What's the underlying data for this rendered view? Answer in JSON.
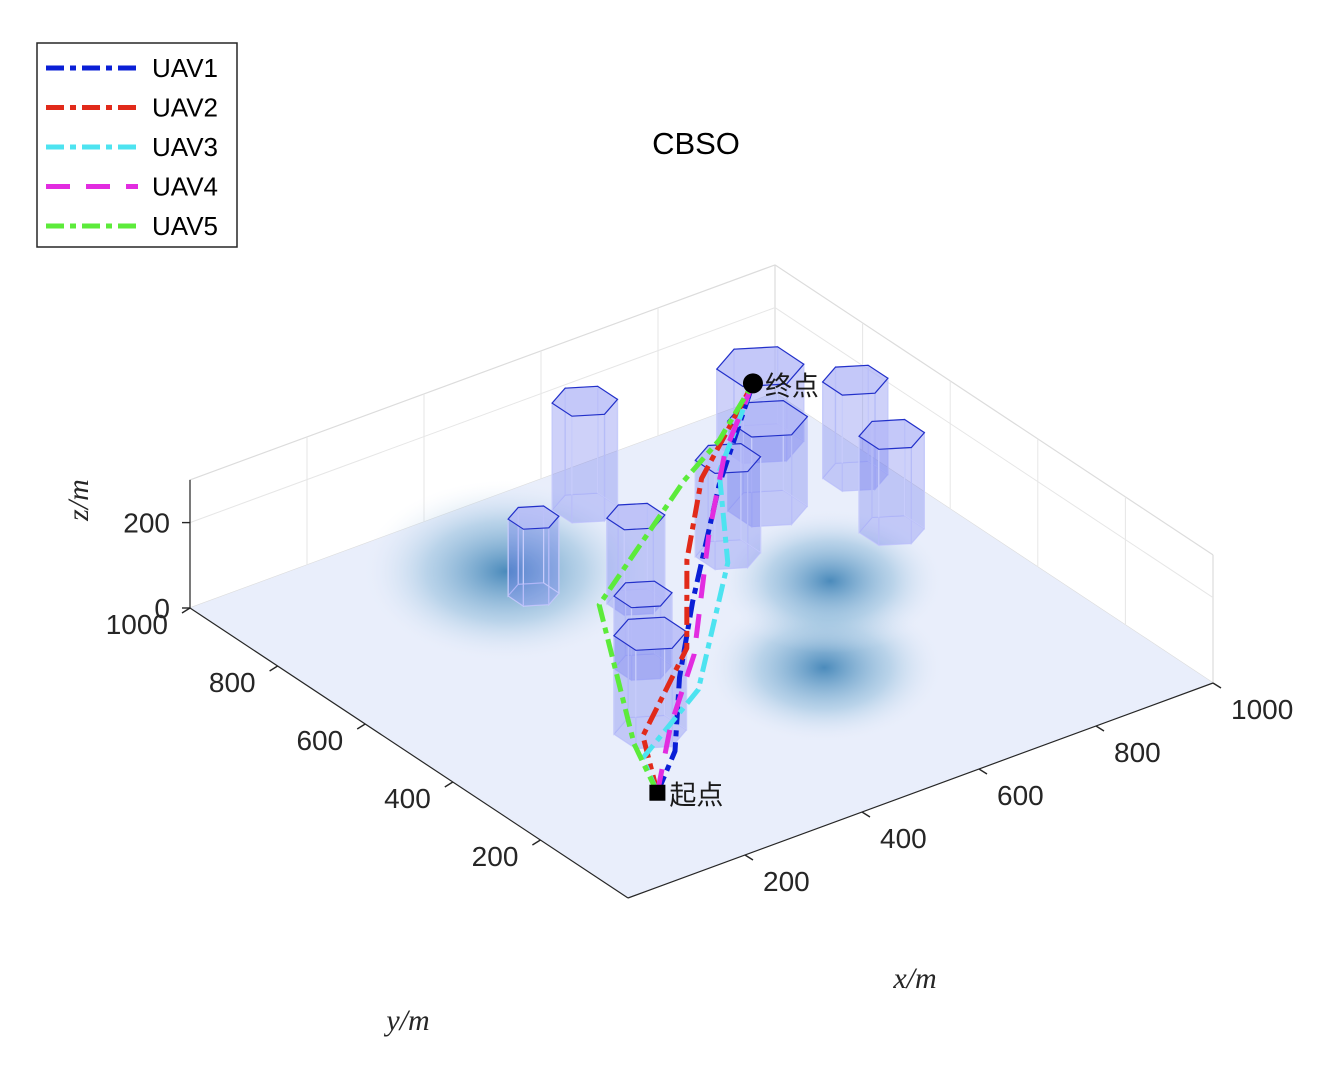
{
  "chart_data": {
    "type": "3d-line",
    "title": "CBSO",
    "xlabel": "x/m",
    "ylabel": "y/m",
    "zlabel": "z/m",
    "xlim": [
      0,
      1000
    ],
    "ylim": [
      0,
      1000
    ],
    "zlim": [
      0,
      300
    ],
    "x_ticks": [
      "200",
      "400",
      "600",
      "800",
      "1000"
    ],
    "y_ticks": [
      "200",
      "400",
      "600",
      "800",
      "1000"
    ],
    "z_ticks": [
      "0",
      "200"
    ],
    "legend_position": "top-left",
    "start": {
      "label": "起点",
      "x": 200,
      "y": 200,
      "z": 10
    },
    "end": {
      "label": "终点",
      "x": 850,
      "y": 850,
      "z": 200
    },
    "obstacles": [
      {
        "x": 680,
        "y": 680,
        "r": 45,
        "h": 225
      },
      {
        "x": 800,
        "y": 750,
        "r": 55,
        "h": 210
      },
      {
        "x": 600,
        "y": 900,
        "r": 45,
        "h": 250
      },
      {
        "x": 900,
        "y": 900,
        "r": 60,
        "h": 180
      },
      {
        "x": 900,
        "y": 600,
        "r": 45,
        "h": 225
      },
      {
        "x": 950,
        "y": 750,
        "r": 45,
        "h": 225
      },
      {
        "x": 500,
        "y": 650,
        "r": 40,
        "h": 200
      },
      {
        "x": 400,
        "y": 750,
        "r": 35,
        "h": 180
      },
      {
        "x": 300,
        "y": 350,
        "r": 50,
        "h": 230
      },
      {
        "x": 400,
        "y": 500,
        "r": 40,
        "h": 170
      }
    ],
    "series": [
      {
        "name": "UAV1",
        "color": "#0a1fd6",
        "dash": "18 6 6 6",
        "points": [
          [
            200,
            200,
            10
          ],
          [
            260,
            240,
            50
          ],
          [
            380,
            390,
            60
          ],
          [
            500,
            520,
            90
          ],
          [
            680,
            700,
            150
          ],
          [
            850,
            850,
            200
          ]
        ]
      },
      {
        "name": "UAV2",
        "color": "#e12a1a",
        "dash": "18 6 6 6",
        "points": [
          [
            200,
            200,
            10
          ],
          [
            250,
            300,
            50
          ],
          [
            430,
            440,
            70
          ],
          [
            520,
            560,
            150
          ],
          [
            650,
            700,
            180
          ],
          [
            850,
            850,
            200
          ]
        ]
      },
      {
        "name": "UAV3",
        "color": "#4de3f0",
        "dash": "18 6 6 6",
        "points": [
          [
            200,
            200,
            10
          ],
          [
            220,
            260,
            40
          ],
          [
            360,
            320,
            90
          ],
          [
            560,
            520,
            150
          ],
          [
            680,
            700,
            180
          ],
          [
            850,
            850,
            200
          ]
        ]
      },
      {
        "name": "UAV4",
        "color": "#e22ce0",
        "dash": "24 16",
        "points": [
          [
            200,
            200,
            10
          ],
          [
            290,
            290,
            60
          ],
          [
            420,
            410,
            80
          ],
          [
            580,
            590,
            160
          ],
          [
            720,
            740,
            180
          ],
          [
            850,
            850,
            200
          ]
        ]
      },
      {
        "name": "UAV5",
        "color": "#5ceb3a",
        "dash": "18 6 6 6",
        "points": [
          [
            200,
            200,
            10
          ],
          [
            220,
            280,
            60
          ],
          [
            370,
            560,
            120
          ],
          [
            620,
            700,
            190
          ],
          [
            740,
            780,
            170
          ],
          [
            850,
            850,
            200
          ]
        ]
      }
    ]
  }
}
